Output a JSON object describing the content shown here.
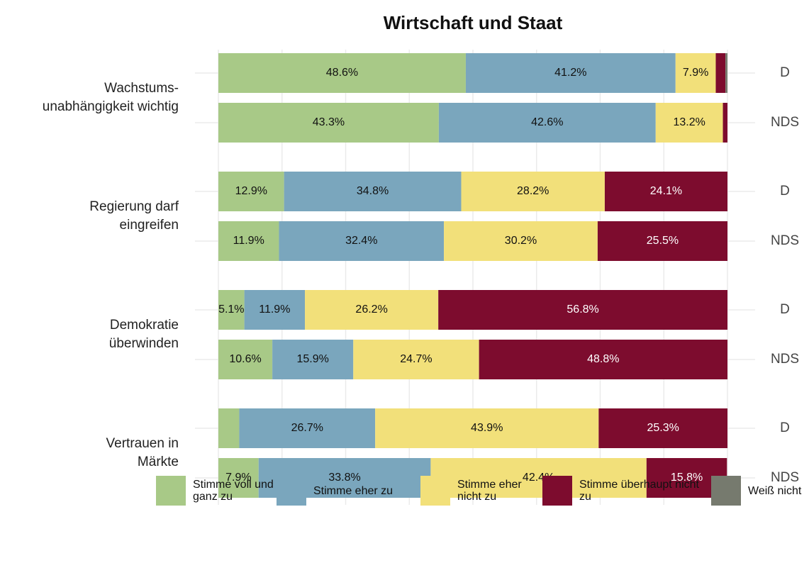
{
  "chart_data": {
    "type": "stacked-barh",
    "title": "Wirtschaft und Staat",
    "groups": [
      [
        "Wachstums-",
        "unabhängigkeit wichtig"
      ],
      [
        "Regierung darf",
        "eingreifen"
      ],
      [
        "Demokratie",
        "überwinden"
      ],
      [
        "Vertrauen in",
        "Märkte"
      ]
    ],
    "categories": [
      "D",
      "NDS",
      "D",
      "NDS",
      "D",
      "NDS",
      "D",
      "NDS"
    ],
    "xlim": [
      0,
      100
    ],
    "xticks": [
      0,
      12.5,
      25,
      37.5,
      50,
      62.5,
      75,
      87.5,
      100
    ],
    "grid": true,
    "legend": "bottom",
    "series": [
      {
        "name": "Stimme voll und ganz zu",
        "color": "#a8c987",
        "text_color": "#111111",
        "values": [
          48.6,
          43.3,
          12.9,
          11.9,
          5.1,
          10.6,
          4.1,
          7.9
        ],
        "value_labels": [
          "48.6%",
          "43.3%",
          "12.9%",
          "11.9%",
          "5.1%",
          "10.6%",
          null,
          "7.9%"
        ]
      },
      {
        "name": "Stimme eher zu",
        "color": "#7aa6bd",
        "text_color": "#111111",
        "values": [
          41.2,
          42.6,
          34.8,
          32.4,
          11.9,
          15.9,
          26.7,
          33.8
        ],
        "value_labels": [
          "41.2%",
          "42.6%",
          "34.8%",
          "32.4%",
          "11.9%",
          "15.9%",
          "26.7%",
          "33.8%"
        ]
      },
      {
        "name": "Stimme eher nicht zu",
        "color": "#f2e07a",
        "text_color": "#111111",
        "values": [
          7.9,
          13.2,
          28.2,
          30.2,
          26.2,
          24.7,
          43.9,
          42.4
        ],
        "value_labels": [
          "7.9%",
          "13.2%",
          "28.2%",
          "30.2%",
          "26.2%",
          "24.7%",
          "43.9%",
          "42.4%"
        ]
      },
      {
        "name": "Stimme überhaupt nicht zu",
        "color": "#7d0c2e",
        "text_color": "#ffffff",
        "values": [
          1.9,
          0.9,
          24.1,
          25.5,
          56.8,
          48.8,
          25.3,
          15.8
        ],
        "value_labels": [
          null,
          null,
          "24.1%",
          "25.5%",
          "56.8%",
          "48.8%",
          "25.3%",
          "15.8%"
        ]
      },
      {
        "name": "Weiß nicht",
        "color": "#767a6e",
        "text_color": "#ffffff",
        "values": [
          0.4,
          null,
          null,
          null,
          null,
          null,
          null,
          null
        ],
        "value_labels": [
          null,
          null,
          null,
          null,
          null,
          null,
          null,
          null
        ]
      }
    ]
  }
}
